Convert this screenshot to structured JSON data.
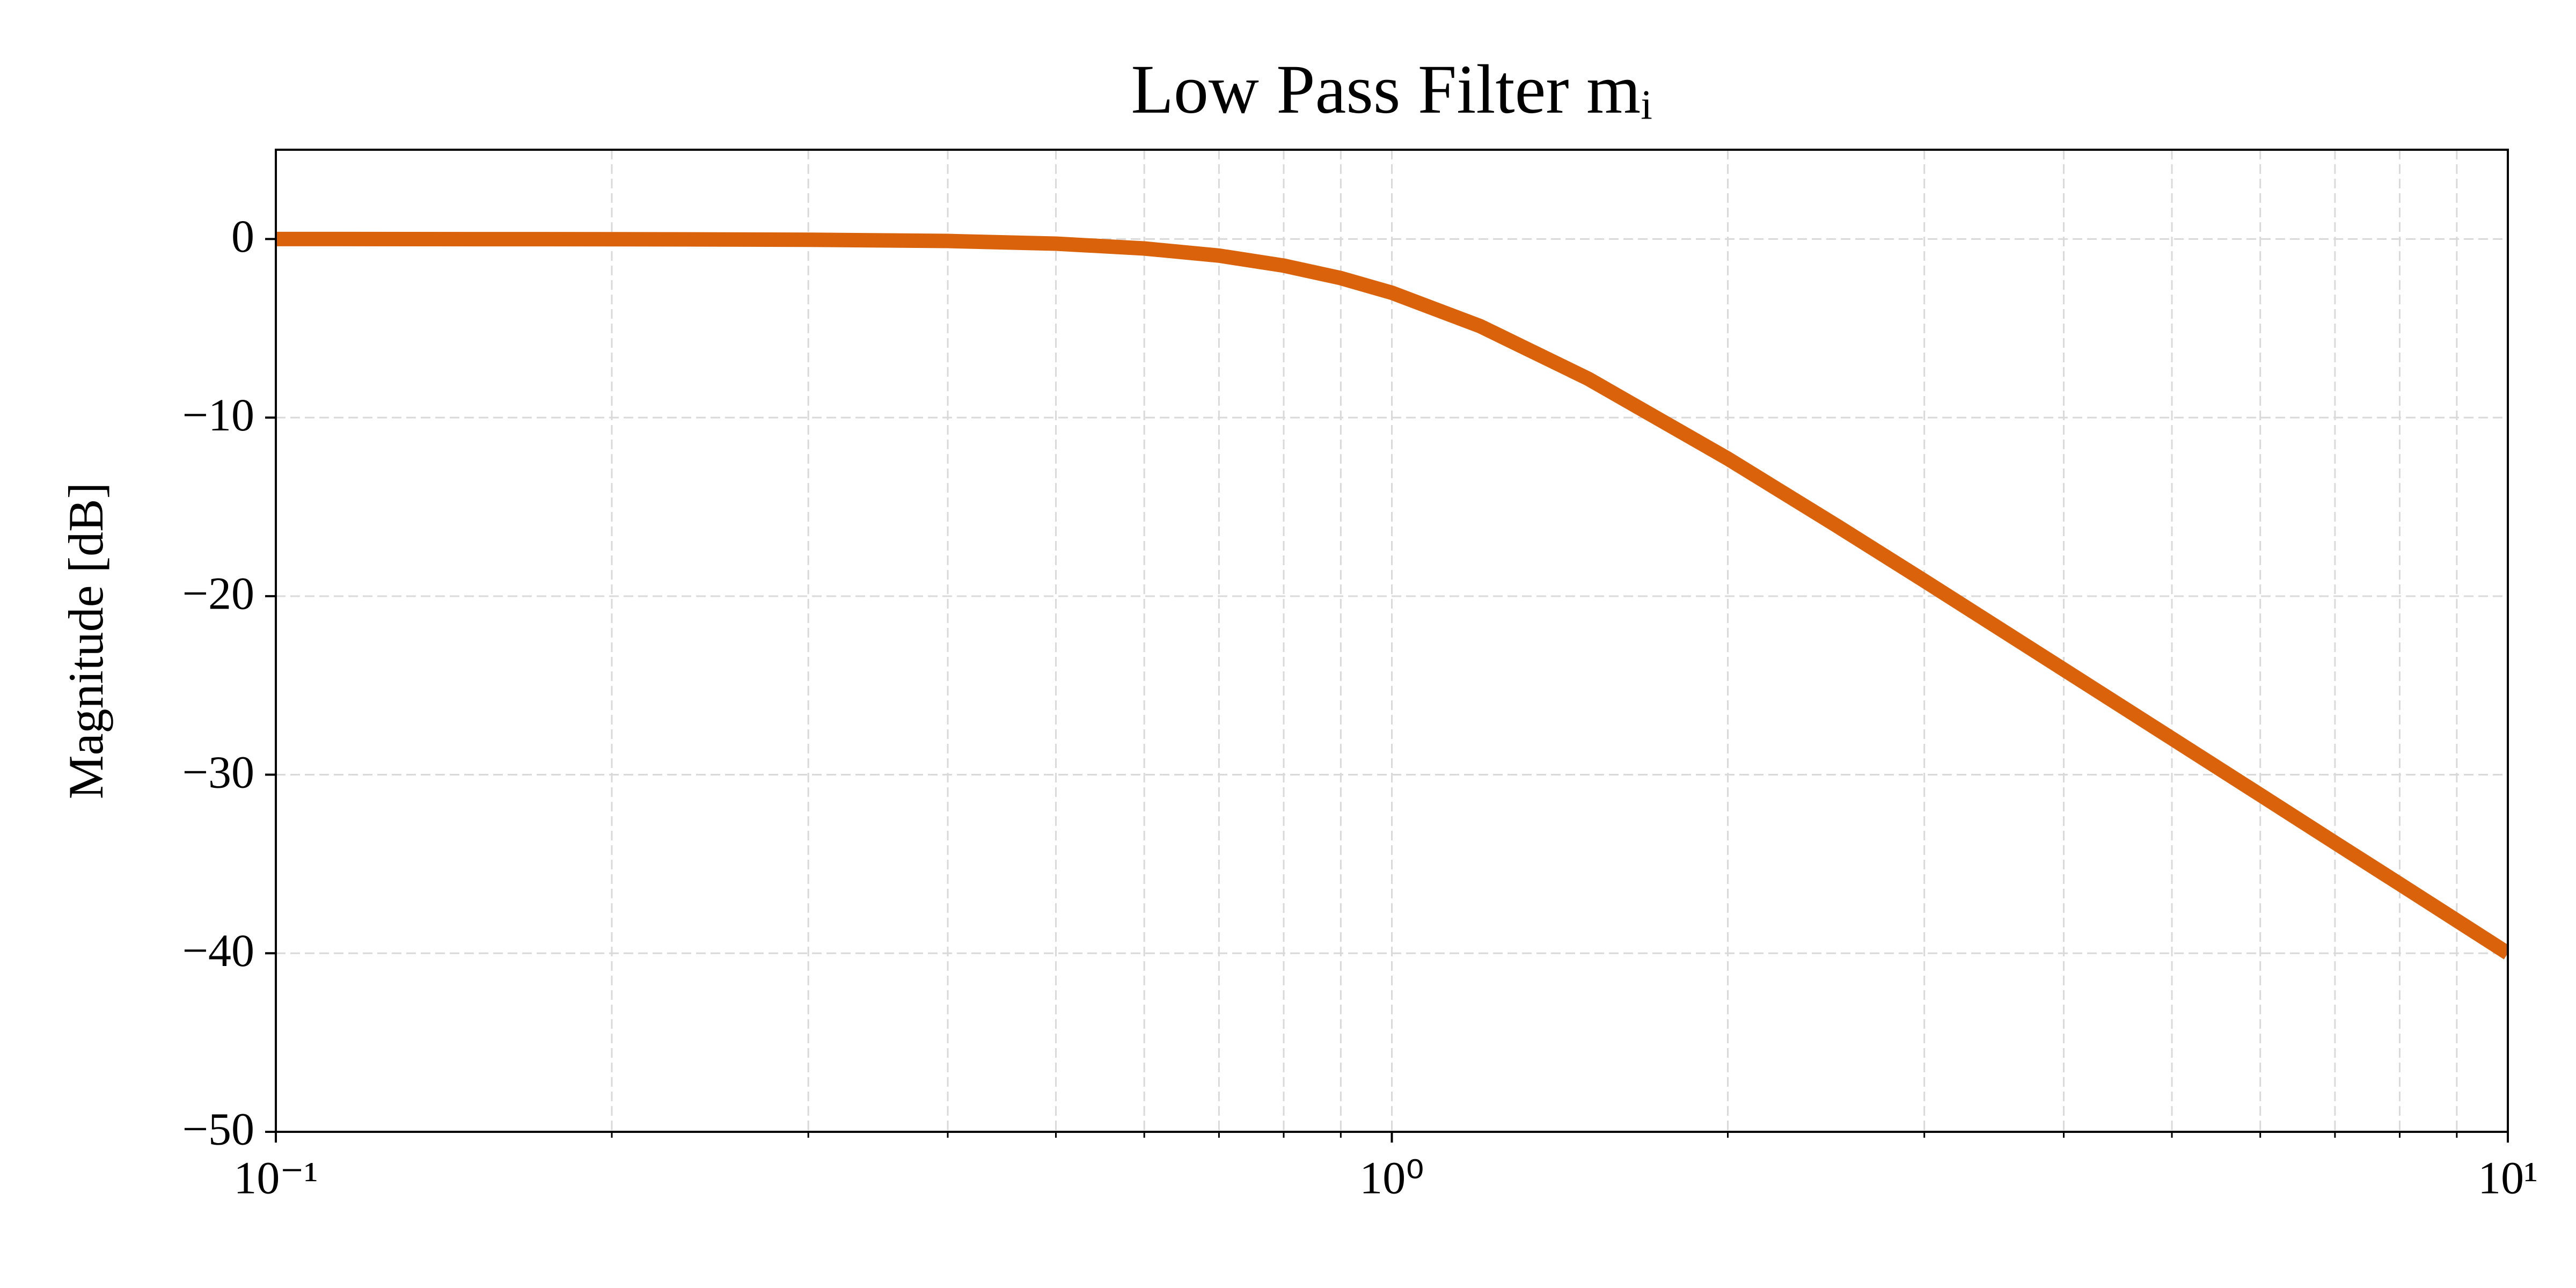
{
  "chart_data": {
    "type": "line",
    "title": "Low Pass Filter mᵢ",
    "y_label": "Magnitude [dB]",
    "x_scale": "log",
    "grid": true,
    "grid_style": "dashed",
    "x": [
      0.1,
      0.2,
      0.3,
      0.4,
      0.5,
      0.6,
      0.7,
      0.8,
      0.9,
      1,
      1.2,
      1.5,
      2,
      2.5,
      3,
      4,
      5,
      6,
      7,
      8,
      10
    ],
    "series": [
      {
        "color": "#d9620b",
        "values": [
          0.0,
          -0.01,
          -0.04,
          -0.11,
          -0.26,
          -0.53,
          -0.93,
          -1.49,
          -2.19,
          -3.01,
          -4.88,
          -7.83,
          -12.3,
          -16.03,
          -19.14,
          -24.11,
          -27.97,
          -31.13,
          -33.81,
          -36.12,
          -40.0
        ]
      }
    ],
    "xlim": [
      0.1,
      10
    ],
    "xticks": [
      {
        "value": 0.1,
        "label": "10⁻¹"
      },
      {
        "value": 1,
        "label": "10⁰"
      },
      {
        "value": 10,
        "label": "10¹"
      }
    ],
    "xticks_minor": [
      0.2,
      0.3,
      0.4,
      0.5,
      0.6,
      0.7,
      0.8,
      0.9,
      2,
      3,
      4,
      5,
      6,
      7,
      8,
      9
    ],
    "ylim": [
      -50,
      5
    ],
    "yticks": [
      {
        "value": -50,
        "label": "−50"
      },
      {
        "value": -40,
        "label": "−40"
      },
      {
        "value": -30,
        "label": "−30"
      },
      {
        "value": -20,
        "label": "−20"
      },
      {
        "value": -10,
        "label": "−10"
      },
      0
    ]
  }
}
